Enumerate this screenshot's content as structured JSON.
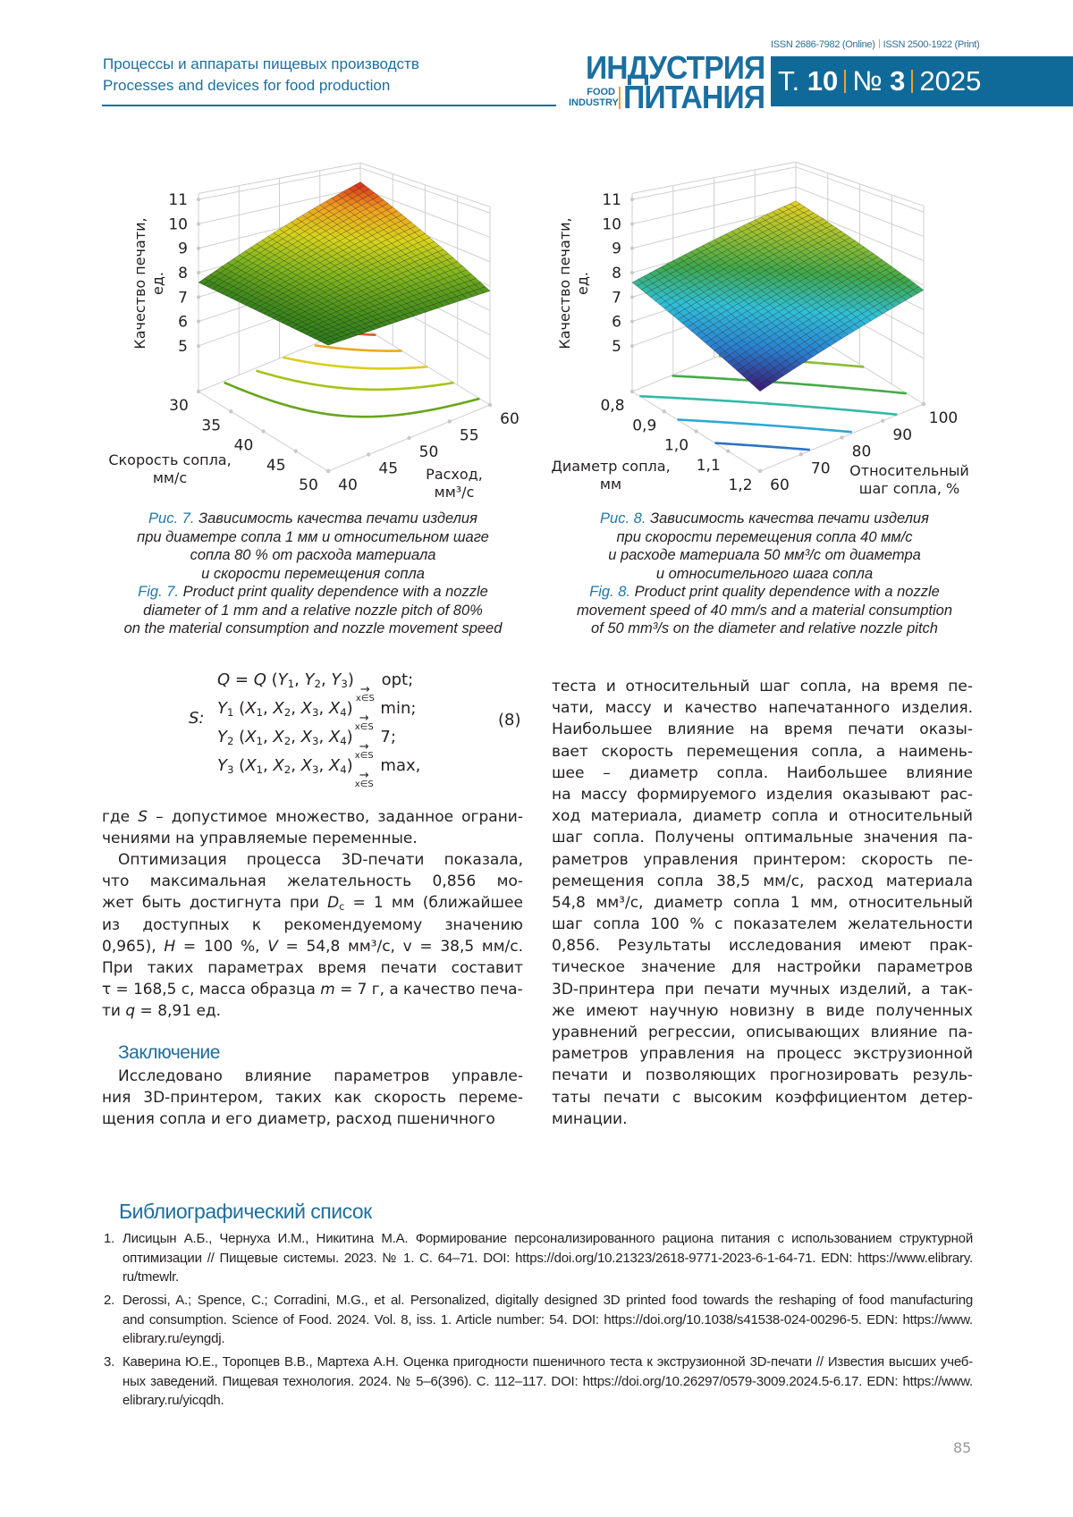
{
  "header": {
    "section_ru": "Процессы и аппараты пищевых производств",
    "section_en": "Processes and devices for food production",
    "issn_online": "ISSN 2686-7982 (Online)",
    "issn_print": "ISSN 2500-1922 (Print)",
    "logo": {
      "line1": "ИНДУСТРИЯ",
      "line2": "ПИТАНИЯ",
      "small1": "FOOD",
      "small2": "INDUSTRY"
    },
    "volume_prefix": "Т.",
    "volume": "10",
    "issue_prefix": "№",
    "issue": "3",
    "year": "2025",
    "colors": {
      "brand_blue": "#0f6a99",
      "accent_orange": "#f0a030"
    }
  },
  "chart_data": [
    {
      "type": "surface3d",
      "z_label": "Качество печати, ед.",
      "x_axis": {
        "label_lines": [
          "Скорость сопла,",
          "мм/с"
        ],
        "ticks": [
          "30",
          "35",
          "40",
          "45",
          "50"
        ],
        "range": [
          30,
          50
        ]
      },
      "y_axis": {
        "label_lines": [
          "Расход,",
          "мм³/с"
        ],
        "ticks": [
          "40",
          "45",
          "50",
          "55",
          "60"
        ],
        "range": [
          40,
          60
        ]
      },
      "z_ticks": [
        "5",
        "6",
        "7",
        "8",
        "9",
        "10",
        "11"
      ],
      "z_range": [
        5,
        11
      ],
      "surface_corners": {
        "x_min_y_min": 7.6,
        "x_max_y_min": 7.5,
        "x_max_y_max": 7.8,
        "x_min_y_max": 10.3
      },
      "contour_levels": [
        8,
        8.5,
        9,
        9.5,
        10
      ],
      "colormap": [
        "#2e7d1a",
        "#7fb51e",
        "#d8d41c",
        "#f0a020",
        "#d8261c"
      ],
      "grid": true
    },
    {
      "type": "surface3d",
      "z_label": "Качество печати, ед.",
      "x_axis": {
        "label_lines": [
          "Диаметр сопла,",
          "мм"
        ],
        "ticks": [
          "0,8",
          "0,9",
          "1,0",
          "1,1",
          "1,2"
        ],
        "range": [
          0.8,
          1.2
        ]
      },
      "y_axis": {
        "label_lines": [
          "Относительный",
          "шаг сопла, %"
        ],
        "ticks": [
          "60",
          "70",
          "80",
          "90",
          "100"
        ],
        "range": [
          60,
          100
        ]
      },
      "z_ticks": [
        "5",
        "6",
        "7",
        "8",
        "9",
        "10",
        "11"
      ],
      "z_range": [
        5,
        11
      ],
      "surface_corners": {
        "x_min_y_min": 7.6,
        "x_max_y_min": 5.9,
        "x_max_y_max": 7.8,
        "x_min_y_max": 9.3
      },
      "contour_levels": [
        6.5,
        7,
        7.5,
        8,
        8.5,
        9
      ],
      "colormap": [
        "#3a1670",
        "#2a7fd0",
        "#30c0d8",
        "#3fa84a",
        "#9ac030",
        "#e8d020"
      ],
      "grid": true
    }
  ],
  "captions": {
    "fig7": [
      [
        {
          "c": "Рис. 7."
        },
        " Зависимость качества печати изделия"
      ],
      "при диаметре сопла 1 мм и относительном шаге",
      "сопла 80 % от расхода материала",
      "и скорости перемещения сопла",
      [
        {
          "c": "Fig. 7."
        },
        " Product print quality dependence with a nozzle"
      ],
      "diameter of 1 mm and a relative nozzle pitch of 80%",
      "on the material consumption and nozzle movement speed"
    ],
    "fig8": [
      [
        {
          "c": "Рис. 8."
        },
        " Зависимость качества печати изделия"
      ],
      "при скорости перемещения сопла 40 мм/с",
      "и расходе материала 50 мм³/с от диаметра",
      "и относительного шага сопла",
      [
        {
          "c": "Fig. 8."
        },
        " Product print quality dependence with a nozzle"
      ],
      "movement speed of 40 mm/s and a material consumption",
      "of 50 mm³/s on the diameter and relative nozzle pitch"
    ]
  },
  "formula": {
    "set_label": "S:",
    "number": "(8)",
    "lines": [
      [
        {
          "i": "Q"
        },
        " = ",
        {
          "i": "Q"
        },
        " (",
        {
          "i": "Y",
          "sub": "1"
        },
        ", ",
        {
          "i": "Y",
          "sub": "2"
        },
        ", ",
        {
          "i": "Y",
          "sub": "3"
        },
        ")",
        {
          "arrow": "→",
          "under": "x∈S"
        },
        " opt;"
      ],
      [
        {
          "i": "Y",
          "sub": "1"
        },
        " (",
        {
          "i": "X",
          "sub": "1"
        },
        ", ",
        {
          "i": "X",
          "sub": "2"
        },
        ", ",
        {
          "i": "X",
          "sub": "3"
        },
        ", ",
        {
          "i": "X",
          "sub": "4"
        },
        ")",
        {
          "arrow": "→",
          "under": "x∈S"
        },
        " min;"
      ],
      [
        {
          "i": "Y",
          "sub": "2"
        },
        " (",
        {
          "i": "X",
          "sub": "1"
        },
        ", ",
        {
          "i": "X",
          "sub": "2"
        },
        ", ",
        {
          "i": "X",
          "sub": "3"
        },
        ", ",
        {
          "i": "X",
          "sub": "4"
        },
        ")",
        {
          "arrow": "→",
          "under": "x∈S"
        },
        " 7;"
      ],
      [
        {
          "i": "Y",
          "sub": "3"
        },
        " (",
        {
          "i": "X",
          "sub": "1"
        },
        ", ",
        {
          "i": "X",
          "sub": "2"
        },
        ", ",
        {
          "i": "X",
          "sub": "3"
        },
        ", ",
        {
          "i": "X",
          "sub": "4"
        },
        ")",
        {
          "arrow": "→",
          "under": "x∈S"
        },
        " max,"
      ]
    ]
  },
  "body": {
    "left_p1": [
      [
        "где ",
        {
          "i": "S"
        },
        " – допустимое множество, заданное ограни-"
      ],
      "чениями на управляемые переменные."
    ],
    "left_p2": [
      "Оптимизация процесса 3D-печати показала,",
      "что максимальная желательность 0,856 мо-",
      [
        "жет быть достигнута при ",
        {
          "i": "D",
          "sub": "c"
        },
        " = 1 мм (ближайшее"
      ],
      "из доступных к рекомендуемому значению",
      [
        "0,965), ",
        {
          "i": "H"
        },
        " = 100 %, ",
        {
          "i": "V"
        },
        " = 54,8 мм³/с, v = 38,5 мм/с."
      ],
      "При таких параметрах время печати составит",
      [
        "τ = 168,5 с, масса образца ",
        {
          "i": "m"
        },
        " = 7 г, а качество печа-"
      ],
      [
        "ти ",
        {
          "i": "q"
        },
        " = 8,91 ед."
      ]
    ],
    "conclusion_heading": "Заключение",
    "left_p3": [
      "Исследовано влияние параметров управле-",
      "ния 3D-принтером, таких как скорость переме-",
      "щения сопла и его диаметр, расход пшеничного"
    ],
    "right_p1": [
      "теста и относительный шаг сопла, на время пе-",
      "чати, массу и качество напечатанного изделия.",
      "Наибольшее влияние на время печати оказы-",
      "вает скорость перемещения сопла, а наимень-",
      "шее – диаметр сопла. Наибольшее влияние",
      "на массу формируемого изделия оказывают рас-",
      "ход материала, диаметр сопла и относительный",
      "шаг сопла. Получены оптимальные значения па-",
      "раметров управления принтером: скорость пе-",
      "ремещения сопла 38,5 мм/с, расход материала",
      "54,8 мм³/с, диаметр сопла 1 мм, относительный",
      "шаг сопла 100 % с показателем желательности",
      "0,856. Результаты исследования имеют прак-",
      "тическое значение для настройки параметров",
      "3D-принтера при печати мучных изделий, а так-",
      "же имеют научную новизну в виде полученных",
      "уравнений регрессии, описывающих влияние па-",
      "раметров управления на процесс экструзионной",
      "печати и позволяющих прогнозировать резуль-",
      "таты печати с высоким коэффициентом детер-",
      "минации."
    ]
  },
  "references": {
    "heading": "Библиографический список",
    "items": [
      {
        "num": "1.",
        "lines": [
          "Лисицын А.Б., Чернуха И.М., Никитина М.А. Формирование персонализированного рациона питания с использованием структурной",
          "оптимизации // Пищевые системы. 2023. № 1. С. 64–71. DOI: https://doi.org/10.21323/2618-9771-2023-6-1-64-71. EDN: https://www.elibrary.",
          "ru/tmewlr."
        ]
      },
      {
        "num": "2.",
        "lines": [
          "Derossi, A.; Spence, C.; Corradini, M.G., et al. Personalized, digitally designed 3D printed food towards the reshaping of food manufacturing",
          "and consumption. Science of Food. 2024. Vol. 8, iss. 1. Article number: 54. DOI: https://doi.org/10.1038/s41538-024-00296-5. EDN: https://www.",
          "elibrary.ru/eyngdj."
        ]
      },
      {
        "num": "3.",
        "lines": [
          "Каверина Ю.Е., Торопцев В.В., Мартеха А.Н. Оценка пригодности пшеничного теста к экструзионной 3D-печати // Известия высших учеб-",
          "ных заведений. Пищевая технология. 2024. № 5–6(396). С. 112–117. DOI: https://doi.org/10.26297/0579-3009.2024.5-6.17. EDN: https://www.",
          "elibrary.ru/yicqdh."
        ]
      }
    ]
  },
  "page_number": "85"
}
